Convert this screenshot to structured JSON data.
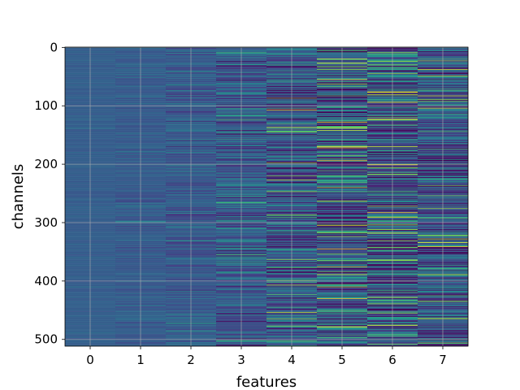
{
  "chart_data": {
    "type": "heatmap",
    "title": "",
    "xlabel": "features",
    "ylabel": "channels",
    "x_ticks": [
      "0",
      "1",
      "2",
      "3",
      "4",
      "5",
      "6",
      "7"
    ],
    "y_ticks": [
      "0",
      "100",
      "200",
      "300",
      "400",
      "500"
    ],
    "n_rows": 512,
    "n_cols": 8,
    "xlim": [
      -0.5,
      7.5
    ],
    "ylim": [
      511.5,
      -0.5
    ],
    "y_inverted": true,
    "colormap": "viridis",
    "grid": true,
    "column_spread": [
      0.02,
      0.04,
      0.07,
      0.12,
      0.16,
      0.22,
      0.2,
      0.17
    ],
    "column_mean": [
      0.3,
      0.29,
      0.28,
      0.27,
      0.26,
      0.25,
      0.25,
      0.24
    ]
  }
}
